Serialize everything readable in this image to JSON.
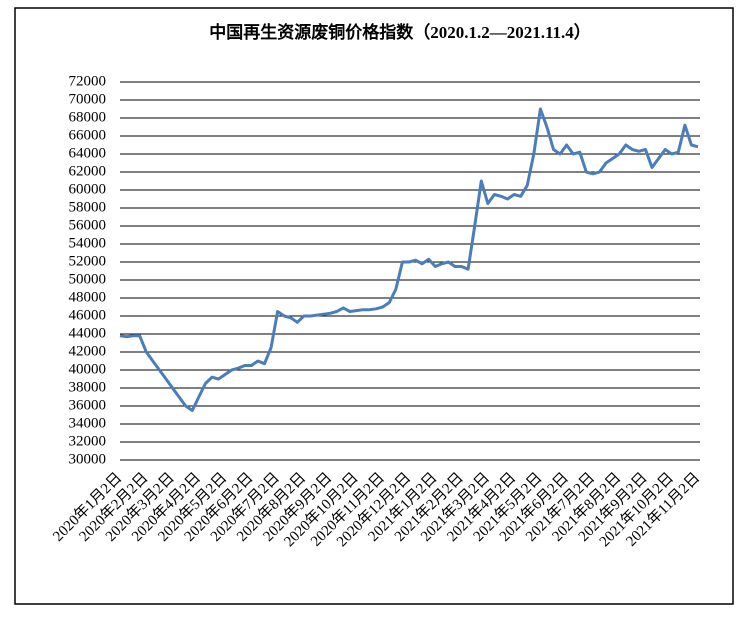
{
  "chart_data": {
    "type": "line",
    "title": "中国再生资源废铜价格指数（2020.1.2—2021.11.4）",
    "categories": [
      "2020年1月2日",
      null,
      null,
      null,
      "2020年2月2日",
      null,
      null,
      null,
      "2020年3月2日",
      null,
      null,
      null,
      "2020年4月2日",
      null,
      null,
      null,
      "2020年5月2日",
      null,
      null,
      null,
      "2020年6月2日",
      null,
      null,
      null,
      "2020年7月2日",
      null,
      null,
      null,
      "2020年8月2日",
      null,
      null,
      null,
      "2020年9月2日",
      null,
      null,
      null,
      "2020年10月2日",
      null,
      null,
      null,
      "2020年11月2日",
      null,
      null,
      null,
      "2020年12月2日",
      null,
      null,
      null,
      "2021年1月2日",
      null,
      null,
      null,
      "2021年2月2日",
      null,
      null,
      null,
      "2021年3月2日",
      null,
      null,
      null,
      "2021年4月2日",
      null,
      null,
      null,
      "2021年5月2日",
      null,
      null,
      null,
      "2021年6月2日",
      null,
      null,
      null,
      "2021年7月2日",
      null,
      null,
      null,
      "2021年8月2日",
      null,
      null,
      null,
      "2021年9月2日",
      null,
      null,
      null,
      "2021年10月2日",
      null,
      null,
      null,
      "2021年11月2日"
    ],
    "values": [
      43800,
      43700,
      43800,
      43800,
      42000,
      41000,
      40000,
      39000,
      38000,
      37000,
      36000,
      35500,
      37000,
      38500,
      39200,
      39000,
      39500,
      40000,
      40200,
      40500,
      40500,
      41000,
      40700,
      42500,
      46500,
      46000,
      45800,
      45300,
      46000,
      46000,
      46100,
      46200,
      46300,
      46500,
      46900,
      46500,
      46600,
      46700,
      46700,
      46800,
      47000,
      47500,
      49000,
      52000,
      52000,
      52200,
      51800,
      52300,
      51500,
      51800,
      52000,
      51500,
      51500,
      51200,
      56000,
      61000,
      58500,
      59500,
      59300,
      59000,
      59500,
      59300,
      60500,
      64000,
      69000,
      67000,
      64500,
      64000,
      65000,
      64000,
      64200,
      62000,
      61800,
      62000,
      63000,
      63500,
      64000,
      65000,
      64500,
      64300,
      64500,
      62500,
      63500,
      64500,
      64000,
      64200,
      67200,
      65000,
      64800
    ],
    "color": "#4a7ebb",
    "ylim": [
      30000,
      72000
    ],
    "yticks": [
      30000,
      32000,
      34000,
      36000,
      38000,
      40000,
      42000,
      44000,
      46000,
      48000,
      50000,
      52000,
      54000,
      56000,
      58000,
      60000,
      62000,
      64000,
      66000,
      68000,
      70000,
      72000
    ],
    "grid": true
  }
}
